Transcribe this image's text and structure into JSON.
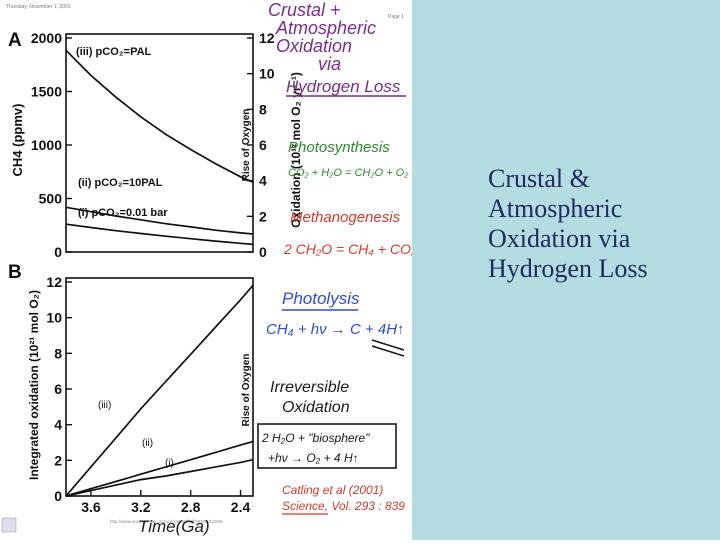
{
  "page_header": "Thursday, November 1, 2001",
  "page_number": "Page 1",
  "footer": "http://www.sciencemag.org/cgi/content/full/293/5531/839",
  "slide_title_lines": [
    "Crustal &",
    "Atmospheric",
    "Oxidation via",
    "Hydrogen Loss"
  ],
  "colors": {
    "panel_bg": "#b3dde0",
    "title_text": "#1f2a63",
    "purple": "#7b2c8e",
    "green": "#2e8b2e",
    "red": "#d23c2c",
    "blue": "#2a4fd6",
    "black": "#1a1a1a"
  },
  "panel_a": {
    "letter": "A",
    "left_axis_label": "CH4 (ppmv)",
    "right_axis_label": "Oxidation (10¹² mol O₂ yr⁻¹)",
    "right_inner_label": "Rise of Oxygen",
    "left_ticks": [
      "2000",
      "1500",
      "1000",
      "500",
      "0"
    ],
    "right_ticks": [
      "12",
      "10",
      "8",
      "6",
      "4",
      "2",
      "0"
    ],
    "curve_labels": [
      "(iii) pCO₂=PAL",
      "(ii) pCO₂=10PAL",
      "(i) pCO₂=0.01 bar"
    ]
  },
  "panel_b": {
    "letter": "B",
    "left_axis_label": "Integrated oxidation (10²¹ mol O₂)",
    "right_inner_label": "Rise of Oxygen",
    "y_ticks": [
      "12",
      "10",
      "8",
      "6",
      "4",
      "2",
      "0"
    ],
    "x_ticks": [
      "3.6",
      "3.2",
      "2.8",
      "2.4"
    ],
    "curve_labels": [
      "(iii)",
      "(ii)",
      "(i)"
    ]
  },
  "chart_data": [
    {
      "type": "line",
      "title": "",
      "xlabel": "Time (Ga)",
      "ylabel": "CH4 (ppmv)",
      "x": [
        3.8,
        3.6,
        3.4,
        3.2,
        3.0,
        2.8,
        2.6,
        2.4,
        2.3
      ],
      "ylim": [
        0,
        2000
      ],
      "series": [
        {
          "name": "(iii) pCO₂=PAL",
          "values": [
            1850,
            1620,
            1420,
            1240,
            1080,
            940,
            810,
            690,
            640
          ]
        },
        {
          "name": "(ii) pCO₂=10PAL",
          "values": [
            410,
            370,
            330,
            295,
            260,
            230,
            200,
            175,
            165
          ]
        },
        {
          "name": "(i) pCO₂=0.01 bar",
          "values": [
            255,
            225,
            195,
            170,
            145,
            122,
            100,
            80,
            70
          ]
        }
      ]
    },
    {
      "type": "line",
      "title": "",
      "xlabel": "Time(Ga)",
      "ylabel": "Integrated oxidation (10²¹ mol O₂)",
      "x": [
        3.8,
        3.6,
        3.4,
        3.2,
        3.0,
        2.8,
        2.6,
        2.4,
        2.3
      ],
      "ylim": [
        0,
        12
      ],
      "series": [
        {
          "name": "(iii)",
          "values": [
            0,
            1.6,
            3.2,
            4.8,
            6.3,
            7.8,
            9.3,
            10.8,
            11.6
          ]
        },
        {
          "name": "(ii)",
          "values": [
            0,
            0.4,
            0.8,
            1.2,
            1.6,
            2.0,
            2.4,
            2.8,
            3.0
          ]
        },
        {
          "name": "(i)",
          "values": [
            0,
            0.3,
            0.6,
            0.9,
            1.1,
            1.35,
            1.6,
            1.85,
            2.0
          ]
        }
      ]
    }
  ],
  "annotations": {
    "heading": [
      "Crustal +",
      "Atmospheric",
      "Oxidation",
      "via",
      "Hydrogen Loss"
    ],
    "photosynthesis": "Photosynthesis",
    "photosynthesis_eq": "CO₂ + H₂O = CH₂O + O₂",
    "methanogenesis": "Methanogenesis",
    "methanogenesis_eq": "2 CH₂O = CH₄ + CO₂",
    "photolysis": "Photolysis",
    "photolysis_eq": "CH₄ + hν → C + 4H↑",
    "irreversible": [
      "Irreversible",
      "Oxidation"
    ],
    "box_eq_1": "2 H₂O + \"biosphere\"",
    "box_eq_2": "+hν → O₂ + 4 H↑",
    "citation_1": "Catling et al (2001)",
    "citation_2": "Science, Vol. 293 : 839",
    "time_label": "Time(Ga)"
  }
}
